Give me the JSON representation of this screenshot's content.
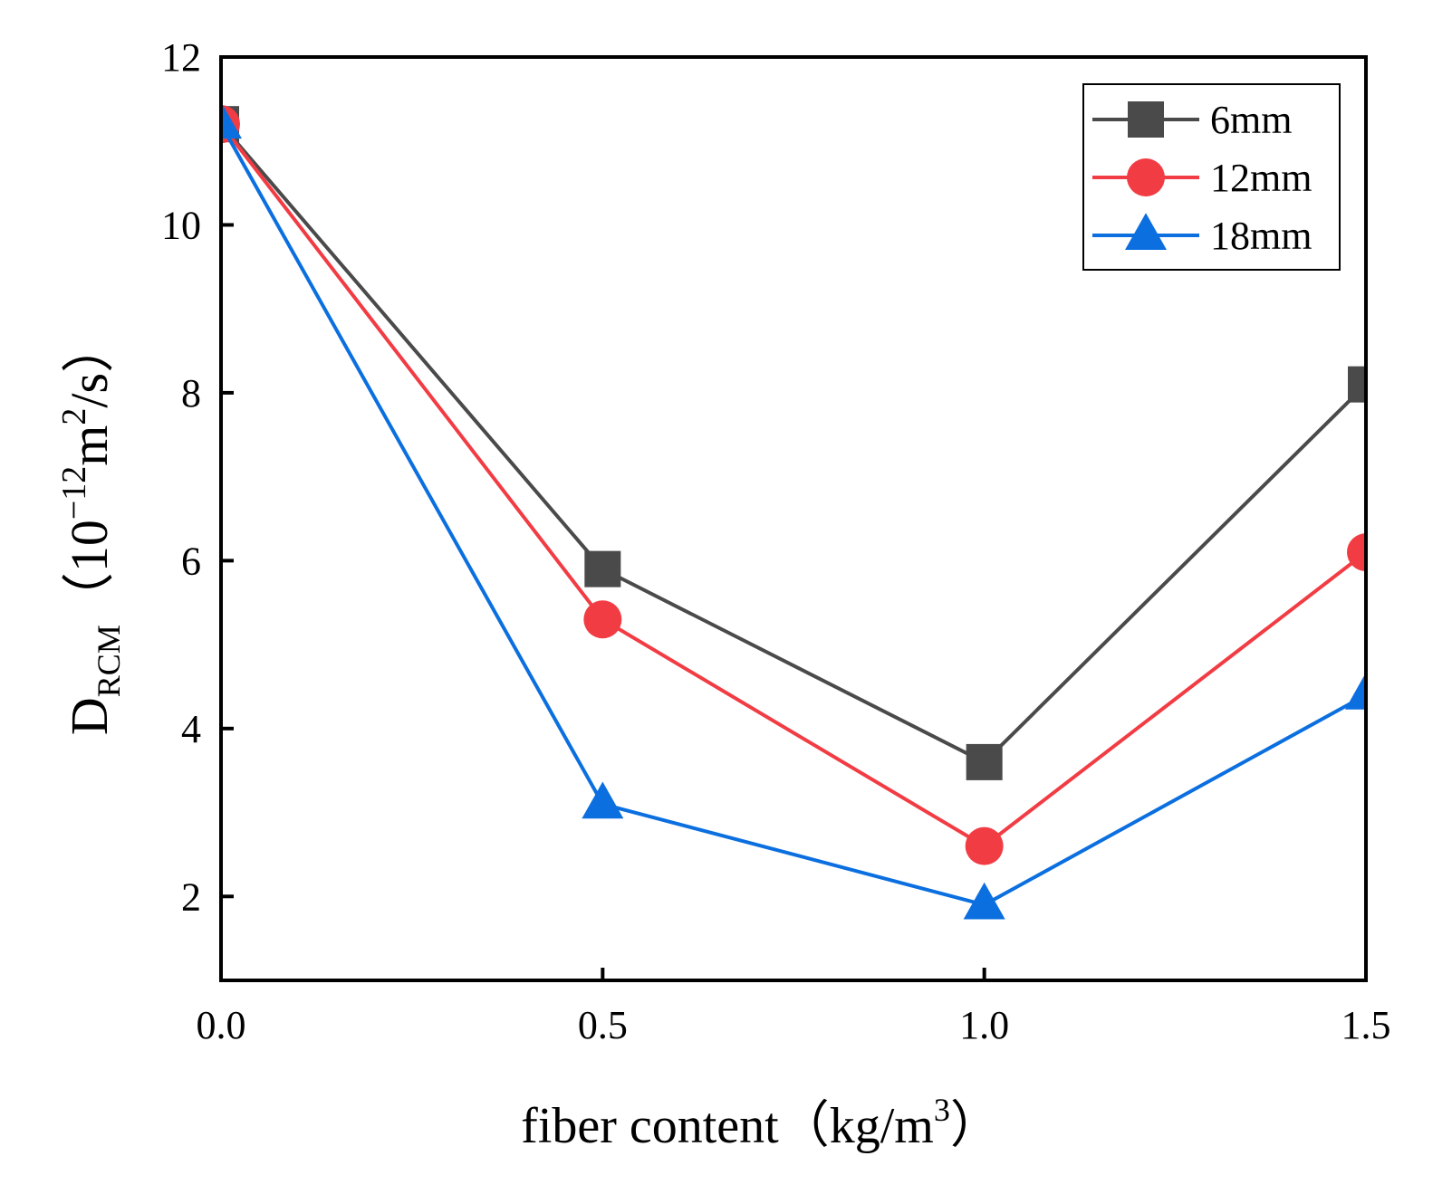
{
  "chart_data": {
    "type": "line",
    "title": "",
    "x": [
      0.0,
      0.5,
      1.0,
      1.5
    ],
    "xticks": [
      "0.0",
      "0.5",
      "1.0",
      "1.5"
    ],
    "yticks": [
      "2",
      "4",
      "6",
      "8",
      "10",
      "12"
    ],
    "xlim": [
      0.0,
      1.5
    ],
    "ylim": [
      1.0,
      12.0
    ],
    "xlabel": "fiber content（kg/m³）",
    "xlabel_main": "fiber content（kg/m",
    "xlabel_sup": "3",
    "xlabel_close": "）",
    "ylabel": "D_RCM（10⁻¹²m²/s）",
    "ylabel_main": "D",
    "ylabel_sub": "RCM",
    "ylabel_open": "（10",
    "ylabel_exp": "−12",
    "ylabel_unit": "m",
    "ylabel_unit_exp": "2",
    "ylabel_tail": "/s）",
    "grid": false,
    "legend_position": "top-right",
    "series": [
      {
        "name": "6mm",
        "values": [
          11.2,
          5.9,
          3.6,
          8.1
        ],
        "color": "#4a4a4a",
        "marker": "square"
      },
      {
        "name": "12mm",
        "values": [
          11.2,
          5.3,
          2.6,
          6.1
        ],
        "color": "#f23c44",
        "marker": "circle"
      },
      {
        "name": "18mm",
        "values": [
          11.2,
          3.1,
          1.9,
          4.4
        ],
        "color": "#0b6fe0",
        "marker": "triangle"
      }
    ]
  }
}
